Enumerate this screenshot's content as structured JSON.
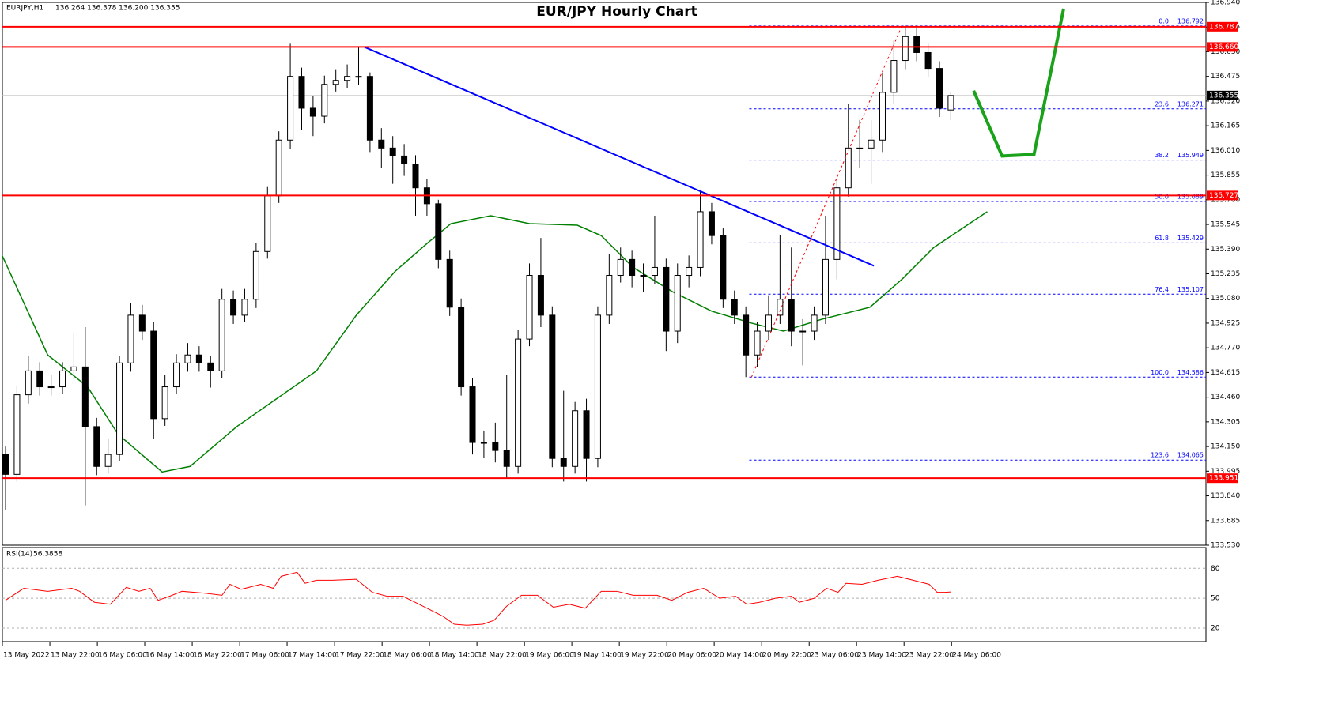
{
  "chart_data": {
    "type": "candlestick",
    "title": "EUR/JPY Hourly Chart",
    "symbol": "EURJPY,H1",
    "header_ohlc": "136.264 136.378 136.200 136.355",
    "ylim": [
      133.53,
      136.94
    ],
    "yticks": [
      {
        "value": 136.94,
        "label": "136.940"
      },
      136.785,
      {
        "value": 136.63,
        "label": "136.630"
      },
      136.475,
      {
        "value": 136.32,
        "label": "136.320"
      },
      136.165,
      {
        "value": 136.01,
        "label": "136.010"
      },
      135.855,
      {
        "value": 135.7,
        "label": "135.700"
      },
      135.545,
      {
        "value": 135.39,
        "label": "135.390"
      },
      135.235,
      {
        "value": 135.08,
        "label": "135.080"
      },
      134.925,
      {
        "value": 134.77,
        "label": "134.770"
      },
      134.615,
      {
        "value": 134.46,
        "label": "134.460"
      },
      134.305,
      {
        "value": 134.15,
        "label": "134.150"
      },
      133.995,
      {
        "value": 133.84,
        "label": "133.840"
      },
      133.685,
      {
        "value": 133.53,
        "label": "133.530"
      }
    ],
    "xlim": [
      -0.28,
      105.4
    ],
    "xticks": [
      {
        "value": -0.28,
        "label": "13 May 2022"
      },
      {
        "value": 3.89,
        "label": "13 May 22:00"
      },
      {
        "value": 8.06,
        "label": "16 May 06:00"
      },
      {
        "value": 12.22,
        "label": "16 May 14:00"
      },
      {
        "value": 16.39,
        "label": "16 May 22:00"
      },
      {
        "value": 20.56,
        "label": "17 May 06:00"
      },
      {
        "value": 24.72,
        "label": "17 May 14:00"
      },
      {
        "value": 28.89,
        "label": "17 May 22:00"
      },
      {
        "value": 33.06,
        "label": "18 May 06:00"
      },
      {
        "value": 37.22,
        "label": "18 May 14:00"
      },
      {
        "value": 41.39,
        "label": "18 May 22:00"
      },
      {
        "value": 45.56,
        "label": "19 May 06:00"
      },
      {
        "value": 49.72,
        "label": "19 May 14:00"
      },
      {
        "value": 53.89,
        "label": "19 May 22:00"
      },
      {
        "value": 58.06,
        "label": "20 May 06:00"
      },
      {
        "value": 62.22,
        "label": "20 May 14:00"
      },
      {
        "value": 66.39,
        "label": "20 May 22:00"
      },
      {
        "value": 70.56,
        "label": "23 May 06:00"
      },
      {
        "value": 74.72,
        "label": "23 May 14:00"
      },
      {
        "value": 78.89,
        "label": "23 May 22:00"
      },
      {
        "value": 83.06,
        "label": "24 May 06:00"
      }
    ],
    "up_color": "#ffffff",
    "down_color": "#000000",
    "open": [
      134.1,
      133.975,
      134.475,
      134.625,
      134.525,
      134.525,
      134.625,
      134.65,
      134.275,
      134.025,
      134.1,
      134.675,
      134.975,
      134.875,
      134.325,
      134.525,
      134.675,
      134.725,
      134.675,
      134.625,
      135.075,
      134.975,
      135.075,
      135.375,
      135.725,
      136.075,
      136.475,
      136.275,
      136.225,
      136.425,
      136.45,
      136.475,
      136.475,
      136.075,
      136.025,
      135.975,
      135.925,
      135.775,
      135.675,
      135.325,
      135.025,
      134.525,
      134.175,
      134.175,
      134.125,
      134.025,
      134.825,
      135.225,
      134.975,
      134.075,
      134.025,
      134.375,
      134.075,
      134.975,
      135.225,
      135.325,
      135.225,
      135.225,
      135.275,
      134.875,
      135.225,
      135.275,
      135.625,
      135.475,
      135.075,
      134.975,
      134.725,
      134.875,
      134.975,
      135.075,
      134.875,
      134.875,
      134.975,
      135.325,
      135.775,
      136.025,
      136.025,
      136.075,
      136.375,
      136.575,
      136.725,
      136.625,
      136.525,
      136.264
    ],
    "high": [
      134.15,
      134.53,
      134.72,
      134.68,
      134.6,
      134.68,
      134.86,
      134.9,
      134.33,
      134.2,
      134.72,
      135.05,
      135.04,
      134.93,
      134.6,
      134.73,
      134.8,
      134.78,
      134.72,
      135.14,
      135.13,
      135.14,
      135.43,
      135.78,
      136.13,
      136.68,
      136.53,
      136.35,
      136.48,
      136.52,
      136.55,
      136.66,
      136.5,
      136.15,
      136.1,
      136.05,
      135.98,
      135.83,
      135.7,
      135.38,
      135.08,
      134.58,
      134.25,
      134.3,
      134.6,
      134.88,
      135.3,
      135.46,
      135.03,
      134.5,
      134.43,
      134.45,
      135.03,
      135.36,
      135.4,
      135.38,
      135.3,
      135.6,
      135.33,
      135.3,
      135.35,
      135.75,
      135.68,
      135.52,
      135.13,
      135.03,
      134.93,
      135.1,
      135.48,
      135.4,
      134.95,
      135.03,
      135.6,
      135.83,
      136.3,
      136.2,
      136.2,
      136.5,
      136.7,
      136.792,
      136.78,
      136.68,
      136.57,
      136.378
    ],
    "low": [
      133.75,
      133.93,
      134.42,
      134.47,
      134.47,
      134.48,
      134.57,
      133.78,
      133.97,
      133.98,
      134.06,
      134.62,
      134.82,
      134.2,
      134.28,
      134.48,
      134.62,
      134.62,
      134.52,
      134.58,
      134.92,
      134.93,
      135.02,
      135.33,
      135.68,
      136.02,
      136.14,
      136.1,
      136.18,
      136.38,
      136.4,
      136.42,
      136.0,
      135.9,
      135.8,
      135.85,
      135.6,
      135.6,
      135.27,
      134.97,
      134.47,
      134.1,
      134.08,
      134.05,
      133.951,
      133.98,
      134.78,
      134.9,
      134.02,
      133.93,
      133.98,
      133.93,
      134.02,
      134.92,
      135.18,
      135.15,
      135.12,
      135.17,
      134.75,
      134.8,
      135.15,
      135.22,
      135.42,
      135.02,
      134.92,
      134.586,
      134.65,
      134.82,
      134.92,
      134.78,
      134.66,
      134.82,
      134.92,
      135.2,
      135.72,
      135.9,
      135.8,
      136.0,
      136.3,
      136.52,
      136.57,
      136.47,
      136.22,
      136.2
    ],
    "close": [
      133.975,
      134.475,
      134.625,
      134.525,
      134.525,
      134.625,
      134.65,
      134.275,
      134.025,
      134.1,
      134.675,
      134.975,
      134.875,
      134.325,
      134.525,
      134.675,
      134.725,
      134.675,
      134.625,
      135.075,
      134.975,
      135.075,
      135.375,
      135.725,
      136.075,
      136.475,
      136.275,
      136.225,
      136.425,
      136.45,
      136.475,
      136.475,
      136.075,
      136.025,
      135.975,
      135.925,
      135.775,
      135.675,
      135.325,
      135.025,
      134.525,
      134.175,
      134.175,
      134.125,
      134.025,
      134.825,
      135.225,
      134.975,
      134.075,
      134.025,
      134.375,
      134.075,
      134.975,
      135.225,
      135.325,
      135.225,
      135.225,
      135.275,
      134.875,
      135.225,
      135.275,
      135.625,
      135.475,
      135.075,
      134.975,
      134.725,
      134.875,
      134.975,
      135.075,
      134.875,
      134.875,
      134.975,
      135.325,
      135.775,
      136.025,
      136.025,
      136.075,
      136.375,
      136.575,
      136.725,
      136.625,
      136.525,
      136.275,
      136.355
    ],
    "levels": [
      136.787,
      {
        "value": 136.66,
        "label": "136.660"
      },
      135.727,
      133.951
    ],
    "level_color": "#ff0000",
    "current_price": 136.355,
    "fib": {
      "start_x": 65.3,
      "color": "#0000ff",
      "levels": [
        {
          "ratio": {
            "value": 0,
            "label": "0.0"
          },
          "price": 136.792
        },
        {
          "ratio": 23.6,
          "price": 136.271
        },
        {
          "ratio": 38.2,
          "price": 135.949
        },
        {
          "ratio": {
            "value": 50,
            "label": "50.0"
          },
          "price": 135.689
        },
        {
          "ratio": 61.8,
          "price": 135.429
        },
        {
          "ratio": 76.4,
          "price": 135.107
        },
        {
          "ratio": {
            "value": 100,
            "label": "100.0"
          },
          "price": 134.586
        },
        {
          "ratio": 123.6,
          "price": 134.065
        }
      ]
    },
    "moving_average": {
      "color": "#008000",
      "x": [
        -0.3,
        3.7,
        7.2,
        9.9,
        13.75,
        16.2,
        20.3,
        23.8,
        27.3,
        30.8,
        34.2,
        37.0,
        39.1,
        42.6,
        46.0,
        50.2,
        52.3,
        55.1,
        58.5,
        62.0,
        65.5,
        68.3,
        71.7,
        75.9,
        78.7,
        81.5,
        86.2
      ],
      "values": [
        135.35,
        134.725,
        134.525,
        134.225,
        133.99,
        134.025,
        134.275,
        134.45,
        134.625,
        134.975,
        135.25,
        135.425,
        135.55,
        135.6,
        135.55,
        135.54,
        135.475,
        135.275,
        135.125,
        135.0,
        134.925,
        134.875,
        134.95,
        135.025,
        135.2,
        135.4,
        135.625
      ]
    },
    "trendline": {
      "color": "#0000ff",
      "x": [
        31.5,
        76.25
      ],
      "values": [
        136.66,
        135.285
      ]
    },
    "fib_diagonal": {
      "color": "#ff0000",
      "x": [
        65.5,
        78.7
      ],
      "values": [
        134.586,
        136.792
      ]
    },
    "projection": {
      "color": "#1aa31a",
      "x": [
        85,
        87.5,
        90.3,
        92.9
      ],
      "values": [
        136.385,
        135.975,
        135.985,
        136.9
      ]
    },
    "rsi": {
      "label": "RSI(14)",
      "color": "#ff0000",
      "ylim": [
        5,
        100
      ],
      "yticks": [
        20,
        50,
        80
      ],
      "x": [
        0,
        1.6,
        3.7,
        5.8,
        6.5,
        7.8,
        9.2,
        10.6,
        11.7,
        12.7,
        13.4,
        14.4,
        15.5,
        17.6,
        19,
        19.7,
        20.7,
        22.4,
        23.5,
        24.2,
        25.6,
        26.3,
        27.3,
        28.7,
        30.8,
        32.2,
        33.5,
        34.9,
        36.3,
        38.4,
        39.4,
        40.5,
        41.9,
        42.9,
        44,
        45.3,
        46.7,
        48.1,
        49.5,
        50.9,
        52.3,
        53.7,
        55.1,
        57.2,
        58.5,
        59.9,
        61.3,
        62.7,
        64.1,
        65.1,
        66.2,
        67.6,
        69,
        69.7,
        71,
        72.1,
        73.1,
        73.8,
        75.2,
        76.6,
        78.3,
        79.7,
        81.1,
        81.8,
        82.5,
        83
      ],
      "values": [
        48,
        60,
        57,
        60,
        57,
        46,
        44,
        61,
        57,
        60,
        48,
        52,
        57,
        55,
        53,
        64,
        59,
        64,
        60,
        72,
        76,
        65,
        68,
        68,
        69,
        56,
        52,
        52,
        44,
        32,
        24,
        23,
        24,
        28,
        42,
        53,
        53,
        41,
        44,
        40,
        57,
        57,
        53,
        53,
        48,
        56,
        60,
        50,
        52,
        44,
        46,
        50,
        52,
        46,
        50,
        60,
        56,
        65,
        64,
        68,
        72,
        68,
        64,
        56,
        56,
        56.3858
      ]
    }
  }
}
